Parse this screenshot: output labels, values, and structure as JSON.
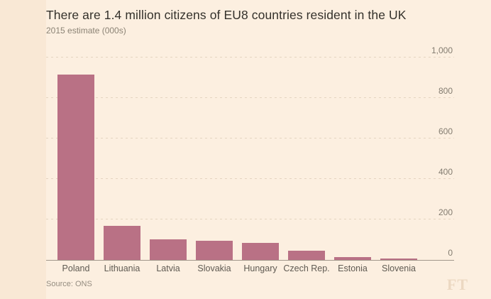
{
  "header": {
    "title": "There are 1.4 million citizens of EU8 countries resident in the UK",
    "subtitle": "2015 estimate (000s)"
  },
  "footer": {
    "source": "Source: ONS",
    "logo": "FT"
  },
  "colors": {
    "background": "#fcefe0",
    "left_strip": "#f9e8d5",
    "bar": "#b97185",
    "title": "#34312b",
    "subtitle": "#8b8375",
    "gridline": "#e4d4c0",
    "baseline": "#a0968a",
    "ytick_label": "#837c70",
    "xtick_label": "#5f5a52",
    "source": "#958d80",
    "logo": "#ecd8c2"
  },
  "chart_data": {
    "type": "bar",
    "title": "There are 1.4 million citizens of EU8 countries resident in the UK",
    "subtitle": "2015 estimate (000s)",
    "categories": [
      "Poland",
      "Lithuania",
      "Latvia",
      "Slovakia",
      "Hungary",
      "Czech Rep.",
      "Estonia",
      "Slovenia"
    ],
    "values": [
      916,
      170,
      101,
      96,
      86,
      47,
      14,
      6
    ],
    "xlabel": "",
    "ylabel": "",
    "ylim": [
      0,
      1000
    ],
    "yticks": [
      0,
      200,
      400,
      600,
      800,
      1000
    ],
    "ytick_labels": [
      "0",
      "200",
      "400",
      "600",
      "800",
      "1,000"
    ],
    "y_axis_side": "right",
    "grid": "horizontal-dotted",
    "legend": "none",
    "source": "ONS"
  }
}
